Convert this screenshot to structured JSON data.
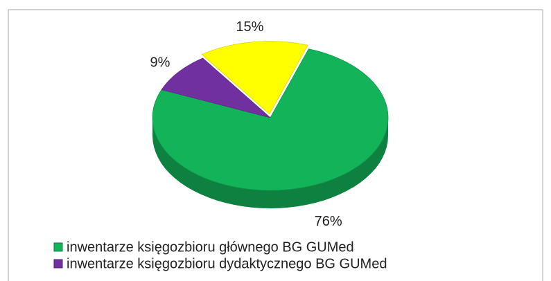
{
  "chart_data": {
    "type": "pie",
    "categories": [
      "inwentarze księgozbioru głównego BG GUMed",
      "inwentarze księgozbioru dydaktycznego BG GUMed",
      null
    ],
    "values": [
      76,
      9,
      15
    ],
    "value_labels": [
      "76%",
      "9%",
      "15%"
    ],
    "colors": [
      "#13b35a",
      "#7030a0",
      "#ffff00"
    ],
    "legend": "bottom-left"
  }
}
